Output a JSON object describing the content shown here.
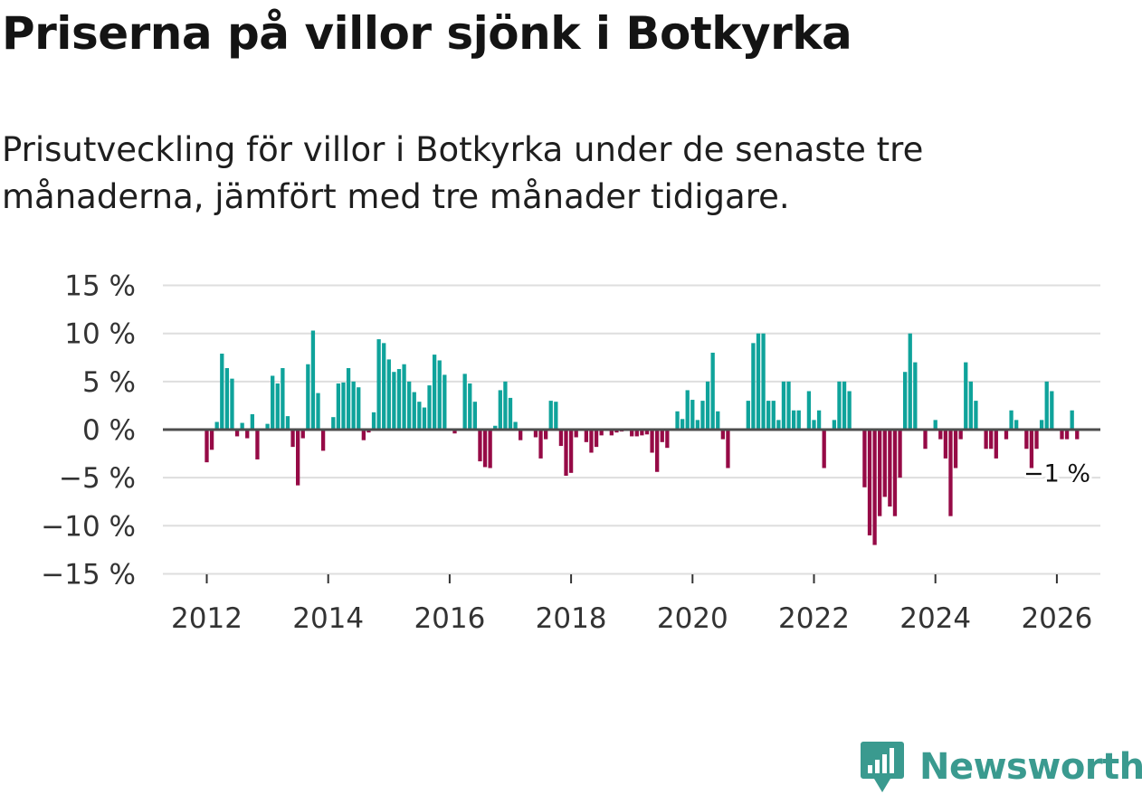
{
  "header": {
    "title": "Priserna på villor sjönk i Botkyrka",
    "subtitle": "Prisutveckling för villor i Botkyrka under de senaste tre månaderna, jämfört med tre månader tidigare."
  },
  "brand": {
    "name": "Newsworthy",
    "icon": "newsworthy-logo-icon",
    "color": "#3a9a8f"
  },
  "colors": {
    "positive": "#0fa39b",
    "negative": "#960a46",
    "zero_line": "#4d4d4d",
    "grid": "#dedede"
  },
  "chart_data": {
    "type": "bar",
    "title": "Priserna på villor sjönk i Botkyrka",
    "xlabel": "",
    "ylabel": "",
    "ylim": [
      -15,
      15
    ],
    "yticks": [
      15,
      10,
      5,
      0,
      -5,
      -10,
      -15
    ],
    "ytick_labels": [
      "15 %",
      "10 %",
      "5 %",
      "0 %",
      "−5 %",
      "−10 %",
      "−15 %"
    ],
    "xticks": [
      2012,
      2014,
      2016,
      2018,
      2020,
      2022,
      2024,
      2026
    ],
    "xtick_labels": [
      "2012",
      "2014",
      "2016",
      "2018",
      "2020",
      "2022",
      "2024",
      "2026"
    ],
    "x_start": "2012-01",
    "frequency": "monthly",
    "end_label": "−1 %",
    "values": [
      -3.4,
      -2.1,
      0.8,
      7.9,
      6.4,
      5.3,
      -0.7,
      0.7,
      -0.9,
      1.6,
      -3.1,
      0,
      0.6,
      5.6,
      4.8,
      6.4,
      1.4,
      -1.8,
      -5.8,
      -0.9,
      6.8,
      10.3,
      3.8,
      -2.2,
      0,
      1.3,
      4.8,
      4.9,
      6.4,
      5.0,
      4.4,
      -1.1,
      -0.3,
      1.8,
      9.4,
      9.0,
      7.3,
      6.0,
      6.3,
      6.8,
      5.0,
      3.9,
      2.9,
      2.3,
      4.6,
      7.8,
      7.2,
      5.7,
      0,
      -0.4,
      0,
      5.8,
      4.8,
      2.9,
      -3.3,
      -3.9,
      -4.0,
      0.4,
      4.1,
      5.0,
      3.3,
      0.8,
      -1.1,
      0,
      0,
      -0.8,
      -3.0,
      -1.0,
      3.0,
      2.9,
      -1.7,
      -4.8,
      -4.5,
      -0.8,
      0,
      -1.3,
      -2.4,
      -1.8,
      -0.6,
      0,
      -0.6,
      -0.3,
      -0.2,
      0,
      -0.7,
      -0.7,
      -0.6,
      -0.5,
      -2.4,
      -4.4,
      -1.3,
      -1.9,
      0,
      1.9,
      1.1,
      4.1,
      3.1,
      1.0,
      3.0,
      5.0,
      8.0,
      1.9,
      -1.0,
      -4.0,
      0,
      0,
      0,
      3.0,
      9.0,
      10.0,
      10.0,
      3.0,
      3.0,
      1.0,
      5.0,
      5.0,
      2.0,
      2.0,
      0,
      4.0,
      1.0,
      2.0,
      -4.0,
      0,
      1.0,
      5.0,
      5.0,
      4.0,
      0,
      0,
      -6.0,
      -11.0,
      -12.0,
      -9.0,
      -7.0,
      -8.0,
      -9.0,
      -5.0,
      6.0,
      10.0,
      7.0,
      0,
      -2.0,
      0,
      1.0,
      -1.0,
      -3.0,
      -9.0,
      -4.0,
      -1.0,
      7.0,
      5.0,
      3.0,
      0,
      -2.0,
      -2.0,
      -3.0,
      0,
      -1.0,
      2.0,
      1.0,
      0,
      -2.0,
      -4.0,
      -2.0,
      1.0,
      5.0,
      4.0,
      0,
      -1.0,
      -1.0,
      2.0,
      -1.0
    ]
  }
}
